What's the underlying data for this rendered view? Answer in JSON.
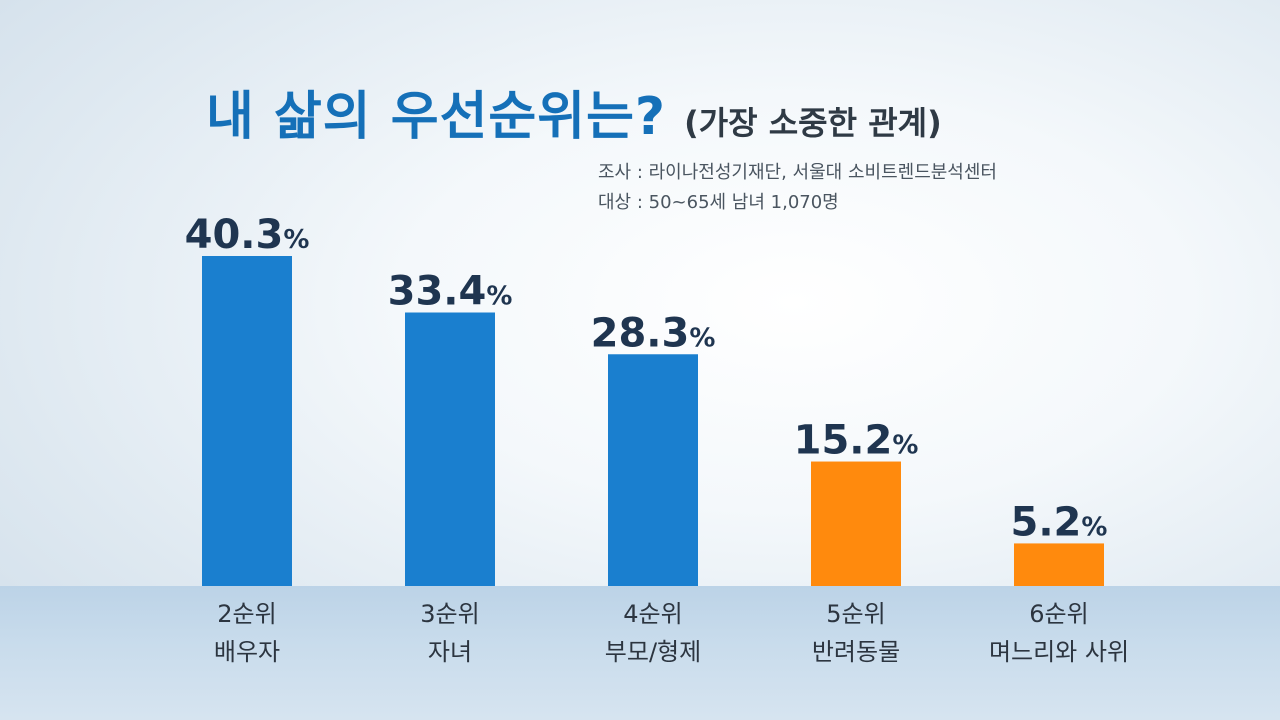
{
  "header": {
    "title": "내 삶의 우선순위는?",
    "subtitle": "(가장 소중한 관계)",
    "source_line_1": "조사 : 라이나전성기재단, 서울대 소비트렌드분석센터",
    "source_line_2": "대상 : 50~65세 남녀 1,070명"
  },
  "colors": {
    "blue_bar": "#1a7fcf",
    "orange_bar": "#ff8a0d",
    "title": "#1570b8"
  },
  "chart_data": {
    "type": "bar",
    "title": "내 삶의 우선순위는?",
    "subtitle": "(가장 소중한 관계)",
    "categories": [
      [
        "2순위",
        "배우자"
      ],
      [
        "3순위",
        "자녀"
      ],
      [
        "4순위",
        "부모/형제"
      ],
      [
        "5순위",
        "반려동물"
      ],
      [
        "6순위",
        "며느리와 사위"
      ]
    ],
    "values": [
      40.3,
      33.4,
      28.3,
      15.2,
      5.2
    ],
    "value_labels": [
      "40.3",
      "33.4",
      "28.3",
      "15.2",
      "5.2"
    ],
    "unit": "%",
    "bar_colors": [
      "#1a7fcf",
      "#1a7fcf",
      "#1a7fcf",
      "#ff8a0d",
      "#ff8a0d"
    ],
    "xlabel": "",
    "ylabel": "",
    "ylim": [
      0,
      40.3
    ],
    "grid": false,
    "legend": "none"
  }
}
